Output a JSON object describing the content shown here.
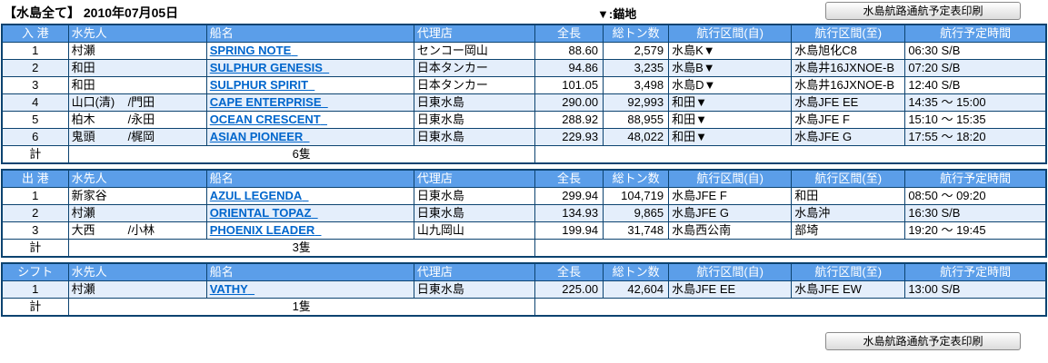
{
  "page": {
    "title": "【水島全て】 2010年07月05日",
    "anchor_legend": "▼:錨地",
    "print_button_label": "水島航路通航予定表印刷"
  },
  "theme": {
    "header_bg": "#5b9ee9",
    "border": "#0c4370",
    "row_alt": "#e4eefb",
    "link": "#0066cc"
  },
  "columns": [
    "水先人",
    "船名",
    "代理店",
    "全長",
    "総トン数",
    "航行区間(自)",
    "航行区間(至)",
    "航行予定時間"
  ],
  "tables": [
    {
      "id": "arrival",
      "type_label": "入 港",
      "total_label": "計",
      "total_count": "6隻",
      "rows": [
        {
          "no": "1",
          "pilot1": "村瀬",
          "pilot2": "",
          "ship": "SPRING NOTE",
          "agent": "センコー岡山",
          "length": "88.60",
          "tonnage": "2,579",
          "from": "水島K▼",
          "to": "水島旭化C8",
          "time": "06:30 S/B",
          "shaded": false
        },
        {
          "no": "2",
          "pilot1": "和田",
          "pilot2": "",
          "ship": "SULPHUR GENESIS",
          "agent": "日本タンカー",
          "length": "94.86",
          "tonnage": "3,235",
          "from": "水島B▼",
          "to": "水島井16JXNOE-B",
          "time": "07:20 S/B",
          "shaded": true
        },
        {
          "no": "3",
          "pilot1": "和田",
          "pilot2": "",
          "ship": "SULPHUR SPIRIT",
          "agent": "日本タンカー",
          "length": "101.05",
          "tonnage": "3,498",
          "from": "水島D▼",
          "to": "水島井16JXNOE-B",
          "time": "12:40 S/B",
          "shaded": false
        },
        {
          "no": "4",
          "pilot1": "山口(清)",
          "pilot2": "/門田",
          "ship": "CAPE ENTERPRISE",
          "agent": "日東水島",
          "length": "290.00",
          "tonnage": "92,993",
          "from": "和田▼",
          "to": "水島JFE EE",
          "time": "14:35 ～ 15:00",
          "shaded": true
        },
        {
          "no": "5",
          "pilot1": "柏木",
          "pilot2": "/永田",
          "ship": "OCEAN CRESCENT",
          "agent": "日東水島",
          "length": "288.92",
          "tonnage": "88,955",
          "from": "和田▼",
          "to": "水島JFE F",
          "time": "15:10 ～ 15:35",
          "shaded": false
        },
        {
          "no": "6",
          "pilot1": "鬼頭",
          "pilot2": "/梶岡",
          "ship": "ASIAN PIONEER",
          "agent": "日東水島",
          "length": "229.93",
          "tonnage": "48,022",
          "from": "和田▼",
          "to": "水島JFE G",
          "time": "17:55 ～ 18:20",
          "shaded": true
        }
      ]
    },
    {
      "id": "departure",
      "type_label": "出 港",
      "total_label": "計",
      "total_count": "3隻",
      "rows": [
        {
          "no": "1",
          "pilot1": "新家谷",
          "pilot2": "",
          "ship": "AZUL LEGENDA",
          "agent": "日東水島",
          "length": "299.94",
          "tonnage": "104,719",
          "from": "水島JFE F",
          "to": "和田",
          "time": "08:50 ～ 09:20",
          "shaded": false
        },
        {
          "no": "2",
          "pilot1": "村瀬",
          "pilot2": "",
          "ship": "ORIENTAL TOPAZ",
          "agent": "日東水島",
          "length": "134.93",
          "tonnage": "9,865",
          "from": "水島JFE G",
          "to": "水島沖",
          "time": "16:30 S/B",
          "shaded": true
        },
        {
          "no": "3",
          "pilot1": "大西",
          "pilot2": "/小林",
          "ship": "PHOENIX LEADER",
          "agent": "山九岡山",
          "length": "199.94",
          "tonnage": "31,748",
          "from": "水島西公南",
          "to": "部埼",
          "time": "19:20 ～ 19:45",
          "shaded": false
        }
      ]
    },
    {
      "id": "shift",
      "type_label": "シフト",
      "total_label": "計",
      "total_count": "1隻",
      "rows": [
        {
          "no": "1",
          "pilot1": "村瀬",
          "pilot2": "",
          "ship": "VATHY",
          "agent": "日東水島",
          "length": "225.00",
          "tonnage": "42,604",
          "from": "水島JFE EE",
          "to": "水島JFE EW",
          "time": "13:00 S/B",
          "shaded": true
        }
      ]
    }
  ]
}
